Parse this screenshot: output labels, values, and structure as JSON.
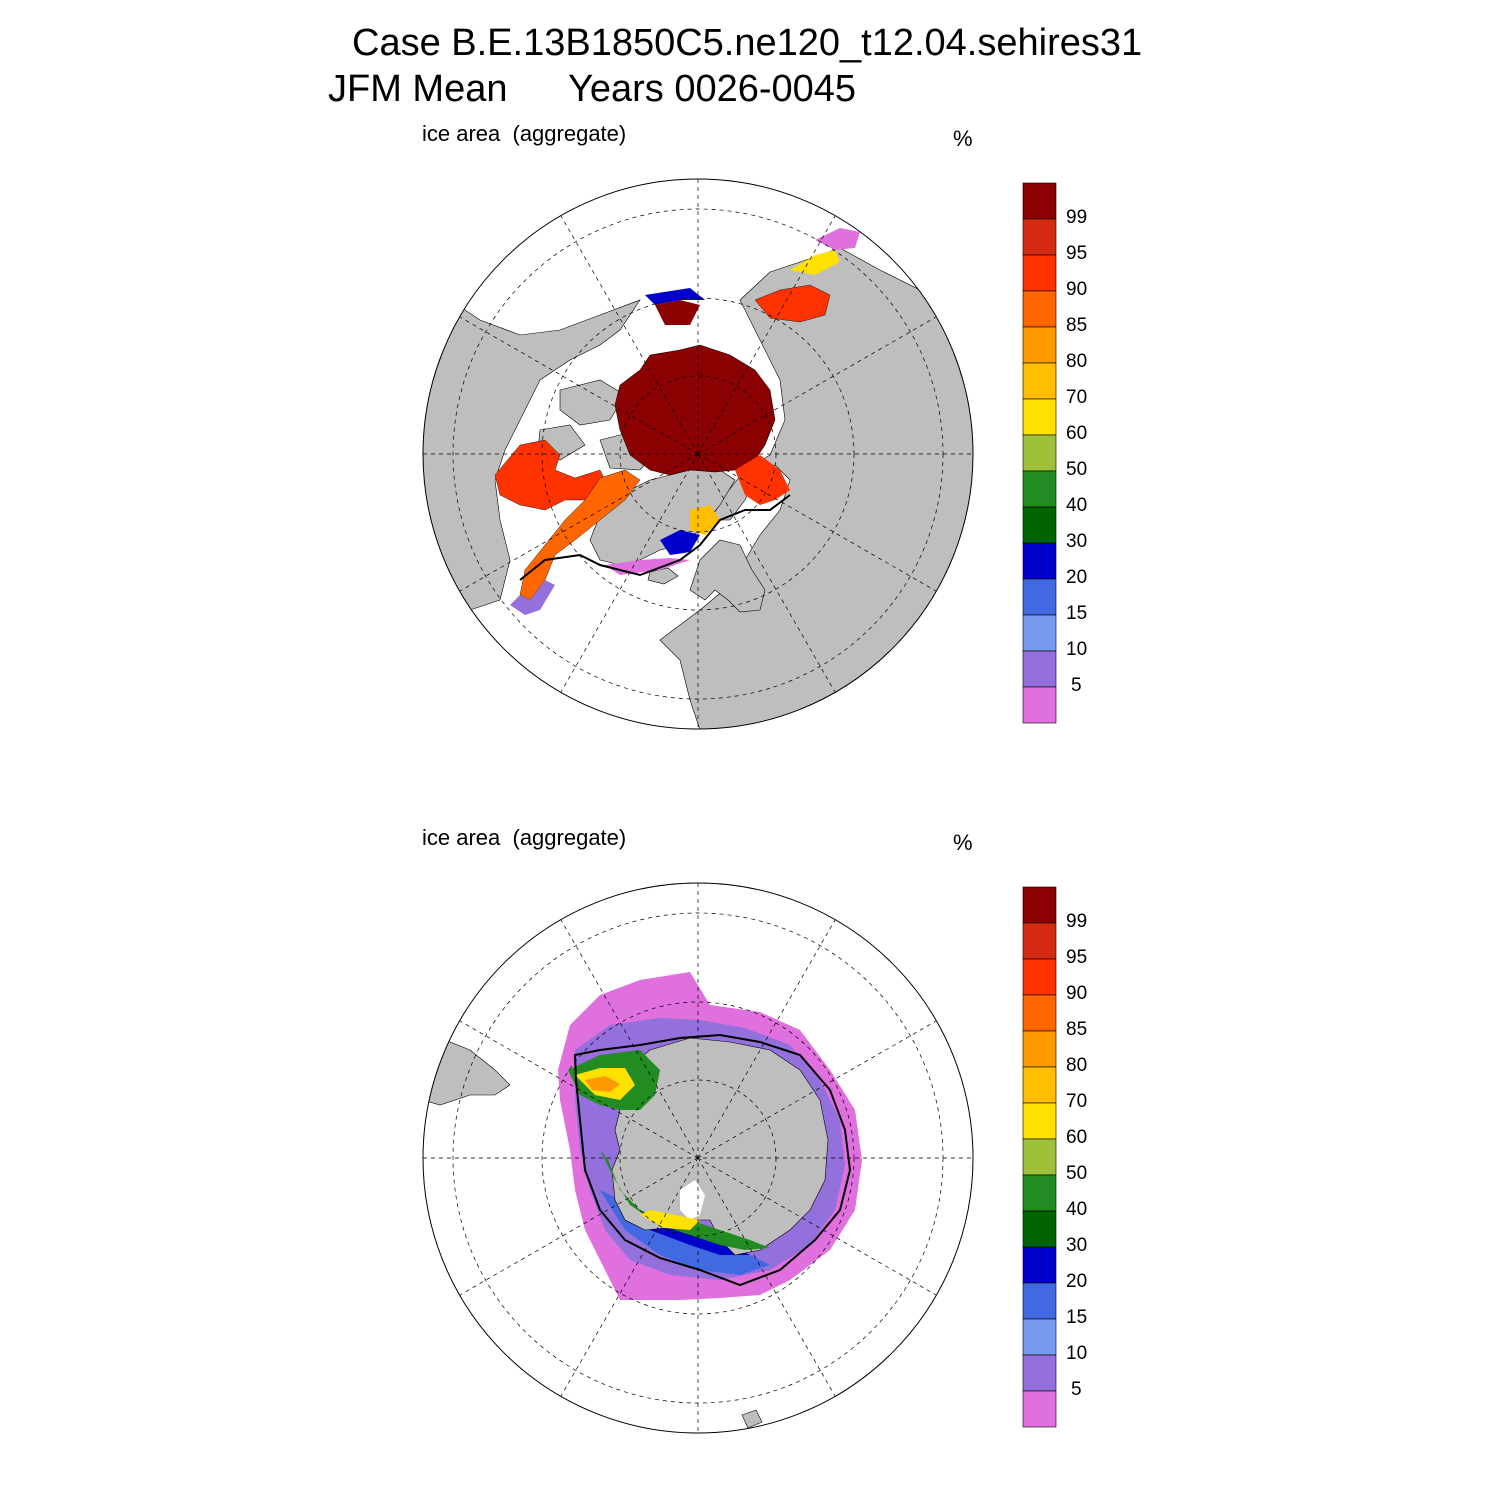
{
  "figure": {
    "title_line1": "Case B.E.13B1850C5.ne120_t12.04.sehires31",
    "title_line2_left": "JFM Mean",
    "title_line2_right": "Years 0026-0045"
  },
  "panels": [
    {
      "id": "north",
      "hemisphere": "Arctic (north polar stereographic)",
      "variable": "ice area  (aggregate)",
      "units": "%"
    },
    {
      "id": "south",
      "hemisphere": "Antarctic (south polar stereographic)",
      "variable": "ice area  (aggregate)",
      "units": "%"
    }
  ],
  "colorbar": {
    "labels": [
      "99",
      "95",
      "90",
      "85",
      "80",
      "70",
      "60",
      "50",
      "40",
      "30",
      "20",
      "15",
      "10",
      "5"
    ],
    "colors": [
      "#8b0000",
      "#d42a12",
      "#ff3300",
      "#ff6600",
      "#ff9900",
      "#ffbf00",
      "#ffe100",
      "#9fc13a",
      "#228b22",
      "#006400",
      "#0000cd",
      "#4169e1",
      "#7799ee",
      "#9370db",
      "#e070dd"
    ]
  },
  "style": {
    "land": "#bebebe",
    "ocean": "#ffffff",
    "ice_edge": "#000000"
  }
}
